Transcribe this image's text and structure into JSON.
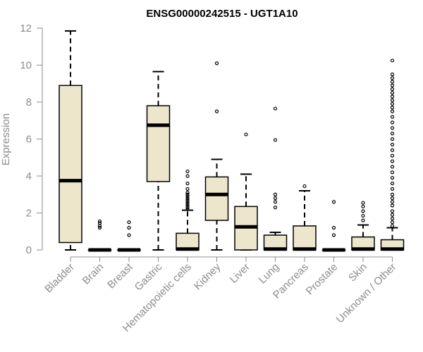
{
  "chart_data": {
    "type": "box",
    "title": "ENSG00000242515 - UGT1A10",
    "ylabel": "Expression",
    "xlabel": "",
    "ylim": [
      0,
      12
    ],
    "yticks": [
      0,
      2,
      4,
      6,
      8,
      10,
      12
    ],
    "box_fill": "#ede6cc",
    "categories": [
      "Bladder",
      "Brain",
      "Breast",
      "Gastric",
      "Hematopoietic cells",
      "Kidney",
      "Liver",
      "Lung",
      "Pancreas",
      "Prostate",
      "Skin",
      "Unknown / Other"
    ],
    "boxes": [
      {
        "min": 0,
        "q1": 0.4,
        "median": 3.75,
        "q3": 8.9,
        "max": 11.85,
        "outliers": []
      },
      {
        "min": 0,
        "q1": 0,
        "median": 0,
        "q3": 0,
        "max": 0,
        "outliers": [
          1.2,
          1.3,
          1.45,
          1.55
        ]
      },
      {
        "min": 0,
        "q1": 0,
        "median": 0,
        "q3": 0,
        "max": 0,
        "outliers": [
          0.8,
          1.2,
          1.5
        ]
      },
      {
        "min": 0,
        "q1": 3.7,
        "median": 6.75,
        "q3": 7.8,
        "max": 9.65,
        "outliers": []
      },
      {
        "min": 0,
        "q1": 0,
        "median": 0.05,
        "q3": 0.9,
        "max": 2.15,
        "outliers": [
          2.2,
          2.3,
          2.4,
          2.5,
          2.6,
          2.7,
          2.8,
          2.9,
          3.0,
          3.1,
          3.3,
          3.6,
          4.0,
          4.25
        ]
      },
      {
        "min": 0,
        "q1": 1.6,
        "median": 3.0,
        "q3": 3.95,
        "max": 4.9,
        "outliers": [
          7.5,
          10.1
        ]
      },
      {
        "min": 0,
        "q1": 0,
        "median": 1.25,
        "q3": 2.35,
        "max": 4.1,
        "outliers": [
          6.25
        ]
      },
      {
        "min": 0,
        "q1": 0,
        "median": 0.05,
        "q3": 0.8,
        "max": 0.95,
        "outliers": [
          2.3,
          2.6,
          2.8,
          3.0,
          5.95,
          7.65
        ]
      },
      {
        "min": 0,
        "q1": 0,
        "median": 0.05,
        "q3": 1.3,
        "max": 3.2,
        "outliers": [
          3.45
        ]
      },
      {
        "min": 0,
        "q1": 0,
        "median": 0,
        "q3": 0,
        "max": 0,
        "outliers": [
          0.8,
          1.2,
          2.6
        ]
      },
      {
        "min": 0,
        "q1": 0,
        "median": 0.05,
        "q3": 0.7,
        "max": 1.35,
        "outliers": [
          1.6,
          1.85,
          2.1,
          2.35,
          2.55
        ]
      },
      {
        "min": 0,
        "q1": 0,
        "median": 0.05,
        "q3": 0.55,
        "max": 1.2,
        "outliers": [
          1.3,
          1.5,
          1.7,
          1.9,
          2.1,
          2.4,
          2.6,
          2.8,
          3.0,
          3.3,
          3.6,
          3.9,
          4.2,
          4.5,
          4.8,
          5.1,
          5.4,
          5.7,
          6.0,
          6.3,
          6.6,
          6.9,
          7.2,
          7.5,
          7.7,
          7.9,
          8.1,
          8.3,
          8.5,
          8.7,
          8.9,
          9.1,
          9.3,
          9.5,
          10.25
        ]
      }
    ]
  }
}
